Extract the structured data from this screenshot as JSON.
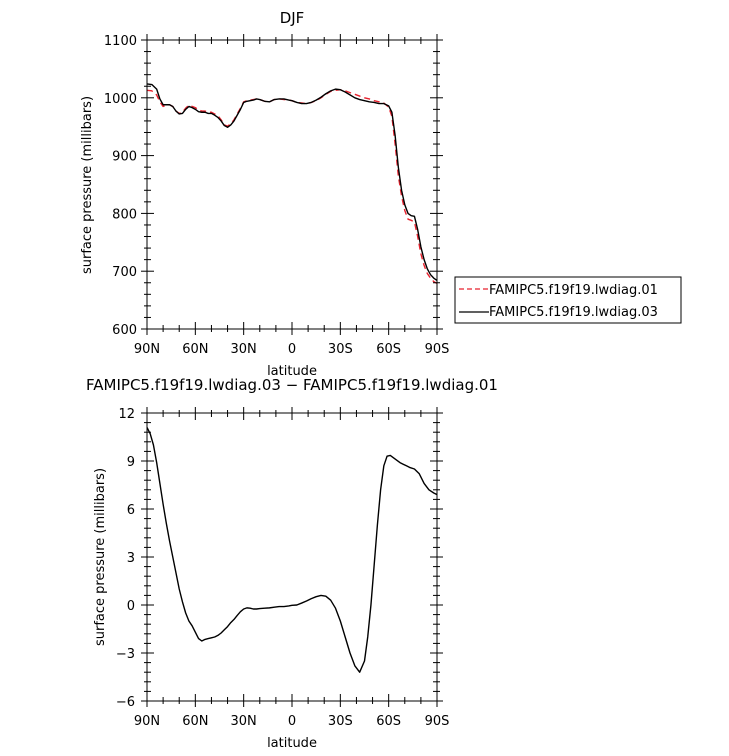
{
  "chart_data": [
    {
      "type": "line",
      "title": "DJF",
      "xlabel": "latitude",
      "ylabel": "surface pressure (millibars)",
      "xlim": [
        90,
        -90
      ],
      "ylim": [
        600,
        1100
      ],
      "x_ticks": [
        {
          "value": 90,
          "label": "90N"
        },
        {
          "value": 60,
          "label": "60N"
        },
        {
          "value": 30,
          "label": "30N"
        },
        {
          "value": 0,
          "label": "0"
        },
        {
          "value": -30,
          "label": "30S"
        },
        {
          "value": -60,
          "label": "60S"
        },
        {
          "value": -90,
          "label": "90S"
        }
      ],
      "y_ticks": [
        600,
        700,
        800,
        900,
        1000,
        1100
      ],
      "legend_position": "right, outside plot",
      "series": [
        {
          "name": "FAMIPC5.f19f19.lwdiag.01",
          "color": "#e8222e",
          "dash": "dashed",
          "x": [
            90,
            87,
            84,
            82,
            80,
            78,
            76,
            74,
            72,
            70,
            68,
            66,
            64,
            62,
            60,
            58,
            56,
            54,
            52,
            50,
            48,
            46,
            44,
            42,
            40,
            38,
            36,
            34,
            32,
            30,
            28,
            26,
            24,
            22,
            20,
            17,
            14,
            11,
            8,
            5,
            2,
            0,
            -3,
            -6,
            -9,
            -12,
            -15,
            -18,
            -21,
            -24,
            -27,
            -30,
            -33,
            -36,
            -39,
            -42,
            -45,
            -48,
            -51,
            -54,
            -57,
            -60,
            -62,
            -64,
            -66,
            -68,
            -70,
            -72,
            -74,
            -76,
            -78,
            -80,
            -82,
            -84,
            -86,
            -88,
            -90
          ],
          "y": [
            1013,
            1012,
            1005,
            993,
            985,
            987,
            988,
            985,
            977,
            973,
            975,
            982,
            987,
            985,
            983,
            979,
            977,
            977,
            975,
            975,
            972,
            969,
            962,
            953,
            951,
            955,
            962,
            972,
            982,
            993,
            995,
            996,
            997,
            998,
            997,
            994,
            993,
            997,
            998,
            997,
            996,
            995,
            992,
            991,
            990,
            992,
            995,
            1000,
            1006,
            1011,
            1013,
            1014,
            1012,
            1009,
            1006,
            1003,
            1000,
            998,
            995,
            993,
            991,
            984,
            968,
            920,
            865,
            830,
            805,
            790,
            788,
            785,
            760,
            730,
            710,
            696,
            688,
            682,
            679
          ]
        },
        {
          "name": "FAMIPC5.f19f19.lwdiag.03",
          "color": "#000000",
          "dash": "solid",
          "x": [
            90,
            87,
            84,
            82,
            80,
            78,
            76,
            74,
            72,
            70,
            68,
            66,
            64,
            62,
            60,
            58,
            56,
            54,
            52,
            50,
            48,
            46,
            44,
            42,
            40,
            38,
            36,
            34,
            32,
            30,
            28,
            26,
            24,
            22,
            20,
            17,
            14,
            11,
            8,
            5,
            2,
            0,
            -3,
            -6,
            -9,
            -12,
            -15,
            -18,
            -21,
            -24,
            -27,
            -30,
            -33,
            -36,
            -39,
            -42,
            -45,
            -48,
            -51,
            -54,
            -57,
            -60,
            -62,
            -64,
            -66,
            -68,
            -70,
            -72,
            -74,
            -76,
            -78,
            -80,
            -82,
            -84,
            -86,
            -88,
            -90
          ],
          "y": [
            1024,
            1023,
            1015,
            998,
            988,
            988,
            988,
            985,
            977,
            972,
            973,
            980,
            985,
            983,
            980,
            976,
            975,
            975,
            973,
            973,
            970,
            966,
            960,
            952,
            949,
            953,
            960,
            970,
            980,
            992,
            994,
            995,
            996,
            998,
            997,
            994,
            993,
            997,
            998,
            998,
            996,
            995,
            992,
            990,
            990,
            992,
            996,
            1001,
            1007,
            1012,
            1015,
            1014,
            1010,
            1005,
            1000,
            997,
            995,
            993,
            992,
            990,
            990,
            986,
            975,
            935,
            880,
            840,
            815,
            800,
            796,
            795,
            772,
            742,
            720,
            704,
            694,
            688,
            684
          ]
        }
      ]
    },
    {
      "type": "line",
      "title": "FAMIPC5.f19f19.lwdiag.03 − FAMIPC5.f19f19.lwdiag.01",
      "xlabel": "latitude",
      "ylabel": "surface pressure (millibars)",
      "xlim": [
        90,
        -90
      ],
      "ylim": [
        -6,
        12
      ],
      "x_ticks": [
        {
          "value": 90,
          "label": "90N"
        },
        {
          "value": 60,
          "label": "60N"
        },
        {
          "value": 30,
          "label": "30N"
        },
        {
          "value": 0,
          "label": "0"
        },
        {
          "value": -30,
          "label": "30S"
        },
        {
          "value": -60,
          "label": "60S"
        },
        {
          "value": -90,
          "label": "90S"
        }
      ],
      "y_tick_labels": [
        "−6",
        "−3",
        "0",
        "3",
        "6",
        "9",
        "12"
      ],
      "y_ticks": [
        -6,
        -3,
        0,
        3,
        6,
        9,
        12
      ],
      "series": [
        {
          "color": "#000000",
          "dash": "solid",
          "x": [
            90,
            88,
            86,
            84,
            82,
            80,
            78,
            76,
            74,
            72,
            70,
            68,
            66,
            64,
            62,
            60,
            58,
            56,
            54,
            52,
            50,
            48,
            46,
            44,
            42,
            40,
            38,
            36,
            34,
            32,
            30,
            28,
            26,
            24,
            22,
            20,
            17,
            14,
            11,
            8,
            5,
            2,
            0,
            -3,
            -6,
            -9,
            -12,
            -15,
            -18,
            -21,
            -24,
            -27,
            -30,
            -33,
            -36,
            -39,
            -42,
            -45,
            -47,
            -49,
            -51,
            -53,
            -55,
            -57,
            -59,
            -61,
            -63,
            -65,
            -67,
            -69,
            -71,
            -73,
            -76,
            -79,
            -82,
            -85,
            -88,
            -90
          ],
          "y": [
            11.1,
            10.7,
            10.0,
            8.9,
            7.6,
            6.3,
            5.1,
            4.0,
            3.0,
            2.0,
            1.0,
            0.2,
            -0.5,
            -1.0,
            -1.3,
            -1.7,
            -2.1,
            -2.25,
            -2.15,
            -2.1,
            -2.05,
            -2.0,
            -1.9,
            -1.75,
            -1.55,
            -1.35,
            -1.1,
            -0.9,
            -0.65,
            -0.42,
            -0.25,
            -0.18,
            -0.2,
            -0.25,
            -0.25,
            -0.22,
            -0.2,
            -0.18,
            -0.14,
            -0.1,
            -0.1,
            -0.06,
            -0.02,
            0.0,
            0.12,
            0.25,
            0.4,
            0.52,
            0.6,
            0.55,
            0.3,
            -0.2,
            -1.0,
            -2.0,
            -3.0,
            -3.8,
            -4.2,
            -3.5,
            -2.0,
            0.0,
            2.5,
            5.0,
            7.2,
            8.7,
            9.3,
            9.35,
            9.2,
            9.05,
            8.9,
            8.8,
            8.7,
            8.6,
            8.5,
            8.2,
            7.6,
            7.2,
            7.0,
            6.9
          ]
        }
      ]
    }
  ],
  "legend": {
    "items": [
      {
        "label": "FAMIPC5.f19f19.lwdiag.01",
        "color": "#e8222e",
        "dash": "dashed"
      },
      {
        "label": "FAMIPC5.f19f19.lwdiag.03",
        "color": "#000000",
        "dash": "solid"
      }
    ]
  }
}
